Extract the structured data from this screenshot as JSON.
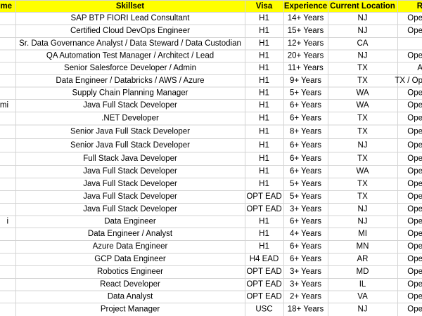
{
  "table": {
    "columns": [
      "me",
      "Skillset",
      "Visa",
      "Experience",
      "Current Location",
      "R"
    ],
    "rows": [
      [
        null,
        "SAP BTP FIORI Lead Consultant",
        "H1",
        "14+ Years",
        "NJ",
        "Ope"
      ],
      [
        null,
        "Certified Cloud DevOps Engineer",
        "H1",
        "15+ Years",
        "NJ",
        "Ope"
      ],
      [
        null,
        "Sr. Data Governance Analyst / Data Steward / Data Custodian",
        "H1",
        "12+ Years",
        "CA",
        null
      ],
      [
        null,
        "QA Automation Test Manager / Architect / Lead",
        "H1",
        "20+ Years",
        "NJ",
        "Ope"
      ],
      [
        null,
        "Senior Salesforce Developer / Admin",
        "H1",
        "11+ Years",
        "TX",
        "A"
      ],
      [
        null,
        "Data Engineer / Databricks / AWS / Azure",
        "H1",
        "9+ Years",
        "TX",
        "TX / Op"
      ],
      [
        null,
        "Supply Chain Planning Manager",
        "H1",
        "5+ Years",
        "WA",
        "Ope"
      ],
      [
        "mi",
        "Java Full Stack Developer",
        "H1",
        "6+ Years",
        "WA",
        "Ope"
      ],
      [
        null,
        ".NET Developer",
        "H1",
        "6+ Years",
        "TX",
        "Ope"
      ],
      [
        null,
        "Senior Java Full Stack Developer",
        "H1",
        "8+ Years",
        "TX",
        "Ope"
      ],
      [
        null,
        "Senior Java Full Stack Developer",
        "H1",
        "6+ Years",
        "NJ",
        "Ope"
      ],
      [
        null,
        "Full Stack Java Developer",
        "H1",
        "6+ Years",
        "TX",
        "Ope"
      ],
      [
        null,
        "Java Full Stack Developer",
        "H1",
        "6+ Years",
        "WA",
        "Ope"
      ],
      [
        null,
        "Java Full Stack Developer",
        "H1",
        "5+ Years",
        "TX",
        "Ope"
      ],
      [
        null,
        "Java Full Stack Developer",
        "OPT EAD",
        "5+ Years",
        "TX",
        "Ope"
      ],
      [
        null,
        "Java Full Stack Developer",
        "OPT EAD",
        "3+ Years",
        "NJ",
        "Ope"
      ],
      [
        "i",
        "Data Engineer",
        "H1",
        "6+ Years",
        "NJ",
        "Ope"
      ],
      [
        null,
        "Data Engineer / Analyst",
        "H1",
        "4+ Years",
        "MI",
        "Ope"
      ],
      [
        null,
        "Azure Data Engineer",
        "H1",
        "6+ Years",
        "MN",
        "Ope"
      ],
      [
        null,
        "GCP Data Engineer",
        "H4 EAD",
        "6+ Years",
        "AR",
        "Ope"
      ],
      [
        null,
        "Robotics Engineer",
        "OPT EAD",
        "3+ Years",
        "MD",
        "Ope"
      ],
      [
        null,
        "React Developer",
        "OPT EAD",
        "3+ Years",
        "IL",
        "Ope"
      ],
      [
        null,
        "Data Analyst",
        "OPT EAD",
        "2+ Years",
        "VA",
        "Ope"
      ],
      [
        null,
        "Project Manager",
        "USC",
        "18+ Years",
        "NJ",
        "Ope"
      ]
    ]
  }
}
